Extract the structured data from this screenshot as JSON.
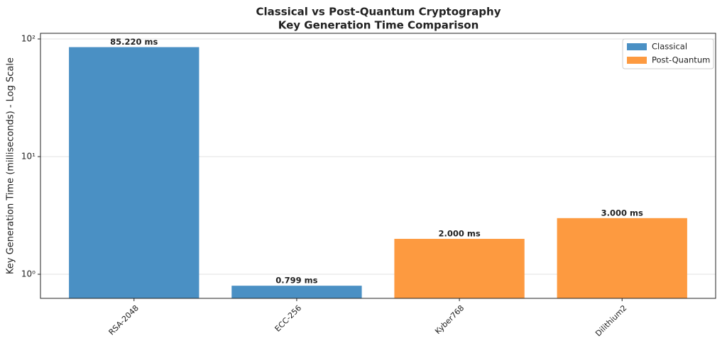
{
  "chart_data": {
    "type": "bar",
    "title": "Classical vs Post-Quantum Cryptography",
    "subtitle": "Key Generation Time Comparison",
    "y_label": "Key Generation Time (milliseconds) - Log Scale",
    "categories": [
      "RSA-2048",
      "ECC-256",
      "Kyber768",
      "Dilithium2"
    ],
    "series": [
      {
        "name": "Classical",
        "color": "#4a90c4",
        "values": [
          85.22,
          0.799,
          null,
          null
        ],
        "value_labels": [
          "85.220 ms",
          "0.799 ms",
          null,
          null
        ]
      },
      {
        "name": "Post-Quantum",
        "color": "#fd9a40",
        "values": [
          null,
          null,
          2.0,
          3.0
        ],
        "value_labels": [
          null,
          null,
          "2.000 ms",
          "3.000 ms"
        ]
      }
    ],
    "log_y": true,
    "ylim": [
      0.624,
      111.7
    ],
    "yticks": [
      {
        "value": 1,
        "label": "10⁰"
      },
      {
        "value": 10,
        "label": "10¹"
      },
      {
        "value": 100,
        "label": "10²"
      }
    ],
    "grid": true,
    "legend": "upper right"
  }
}
